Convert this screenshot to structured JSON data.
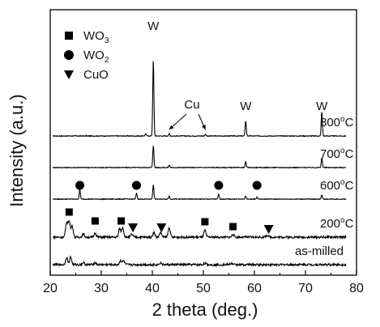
{
  "chart_data": {
    "type": "line",
    "xlabel": "2 theta (deg.)",
    "ylabel": "Intensity (a.u.)",
    "xlim": [
      20,
      80
    ],
    "x_ticks": [
      20,
      30,
      40,
      50,
      60,
      70,
      80
    ],
    "y_ticks_visible": false,
    "legend": {
      "placement": "top-left",
      "entries": [
        {
          "marker": "square",
          "label": "WO",
          "sub": "3"
        },
        {
          "marker": "circle",
          "label": "WO",
          "sub": "2"
        },
        {
          "marker": "triangle-down",
          "label": "CuO",
          "sub": ""
        }
      ]
    },
    "series": [
      {
        "name": "800°C",
        "label_main": "800",
        "label_sup": "o",
        "label_unit": "C",
        "peaks": [
          [
            38.7,
            0.25
          ],
          [
            40.2,
            7.8
          ],
          [
            43.3,
            0.22
          ],
          [
            50.4,
            0.15
          ],
          [
            58.3,
            1.6
          ],
          [
            73.2,
            2.5
          ]
        ]
      },
      {
        "name": "700°C",
        "label_main": "700",
        "label_sup": "o",
        "label_unit": "C",
        "peaks": [
          [
            40.2,
            2.3
          ],
          [
            43.3,
            0.25
          ],
          [
            58.3,
            0.6
          ],
          [
            73.2,
            1.0
          ]
        ]
      },
      {
        "name": "600°C",
        "label_main": "600",
        "label_sup": "o",
        "label_unit": "C",
        "peaks": [
          [
            25.8,
            1.0
          ],
          [
            36.9,
            0.6
          ],
          [
            40.2,
            1.5
          ],
          [
            43.3,
            0.3
          ],
          [
            53.0,
            0.5
          ],
          [
            58.3,
            0.3
          ],
          [
            60.5,
            0.2
          ],
          [
            73.2,
            0.45
          ]
        ]
      },
      {
        "name": "200°C",
        "label_main": "200",
        "label_sup": "o",
        "label_unit": "C",
        "peaks": [
          [
            23.2,
            1.5
          ],
          [
            23.7,
            1.7
          ],
          [
            24.3,
            1.2
          ],
          [
            26.5,
            0.3
          ],
          [
            28.8,
            0.45
          ],
          [
            33.6,
            0.9
          ],
          [
            34.2,
            1.0
          ],
          [
            36.0,
            0.3
          ],
          [
            40.3,
            0.5
          ],
          [
            41.6,
            0.5
          ],
          [
            43.3,
            1.0
          ],
          [
            50.3,
            0.7
          ],
          [
            55.8,
            0.3
          ],
          [
            62.5,
            0.2
          ]
        ]
      },
      {
        "name": "as-milled",
        "label_main": "as-milled",
        "label_sup": "",
        "label_unit": "",
        "peaks": [
          [
            23.2,
            0.75
          ],
          [
            24.0,
            0.8
          ],
          [
            26.5,
            0.2
          ],
          [
            28.8,
            0.2
          ],
          [
            33.8,
            0.45
          ],
          [
            34.4,
            0.4
          ],
          [
            41.6,
            0.2
          ],
          [
            50.3,
            0.15
          ],
          [
            55.5,
            0.15
          ]
        ]
      }
    ],
    "annotations": [
      {
        "text": "W",
        "x": 40.2
      },
      {
        "text": "Cu",
        "arrows_to": [
          43.3,
          50.4
        ]
      },
      {
        "text": "W",
        "x": 58.3
      },
      {
        "text": "W",
        "x": 73.2
      }
    ],
    "markers": [
      {
        "series": "600°C",
        "shape": "circle",
        "x": [
          25.8,
          36.9,
          53.0,
          60.5
        ]
      },
      {
        "series": "200°C",
        "shape": "square",
        "x": [
          23.7,
          28.8,
          33.9,
          50.3,
          55.8
        ]
      },
      {
        "series": "200°C",
        "shape": "triangle-down",
        "x": [
          36.2,
          41.8,
          62.8
        ]
      }
    ]
  }
}
